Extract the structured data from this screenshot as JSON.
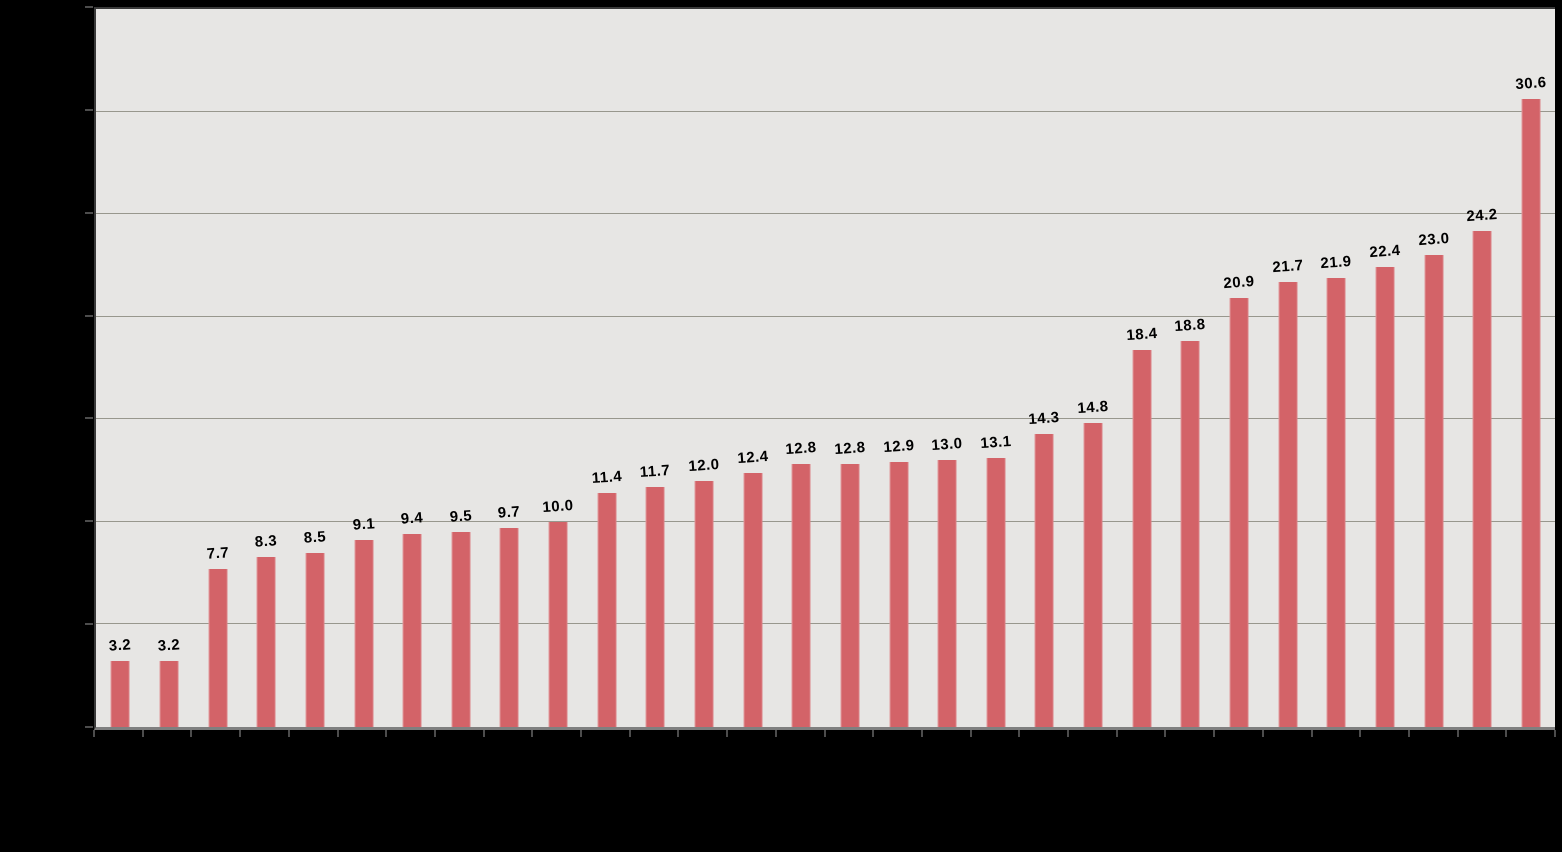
{
  "chart_data": {
    "type": "bar",
    "title": "",
    "values": [
      3.2,
      3.2,
      7.7,
      8.3,
      8.5,
      9.1,
      9.4,
      9.5,
      9.7,
      10.0,
      11.4,
      11.7,
      12.0,
      12.4,
      12.8,
      12.8,
      12.9,
      13.0,
      13.1,
      14.3,
      14.8,
      18.4,
      18.8,
      20.9,
      21.7,
      21.9,
      22.4,
      23.0,
      24.2,
      30.6
    ],
    "value_labels": [
      "3.2",
      "3.2",
      "7.7",
      "8.3",
      "8.5",
      "9.1",
      "9.4",
      "9.5",
      "9.7",
      "10.0",
      "11.4",
      "11.7",
      "12.0",
      "12.4",
      "12.8",
      "12.8",
      "12.9",
      "13.0",
      "13.1",
      "14.3",
      "14.8",
      "18.4",
      "18.8",
      "20.9",
      "21.7",
      "21.9",
      "22.4",
      "23.0",
      "24.2",
      "30.6"
    ],
    "bar_count": 30,
    "ylim": [
      0,
      35
    ],
    "gridline_step": 5,
    "grid": true,
    "legend": "none",
    "xlabel": "",
    "ylabel": ""
  },
  "colors": {
    "page_bg": "#000000",
    "plot_bg": "#e7e6e4",
    "bar": "#d36368",
    "gridline": "#98978d",
    "axis_border": "#3a3a3a",
    "baseline": "#7f7f7f",
    "tick": "#4d4d4d",
    "value_label": "#000000"
  }
}
